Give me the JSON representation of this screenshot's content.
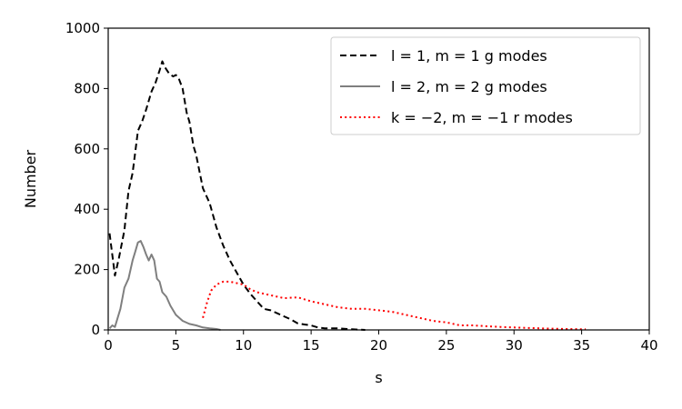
{
  "chart_data": {
    "type": "line",
    "xlabel": "s",
    "ylabel": "Number",
    "xlim": [
      0,
      40
    ],
    "ylim": [
      0,
      1000
    ],
    "xticks": [
      0,
      5,
      10,
      15,
      20,
      25,
      30,
      35,
      40
    ],
    "yticks": [
      0,
      200,
      400,
      600,
      800,
      1000
    ],
    "grid": false,
    "legend_position": "top-right",
    "series": [
      {
        "name": "l = 1, m = 1 g modes",
        "color": "#000000",
        "style": "dashed",
        "x": [
          0.1,
          0.5,
          0.8,
          1.2,
          1.5,
          1.8,
          2.2,
          2.5,
          2.8,
          3.2,
          3.5,
          3.8,
          4.0,
          4.2,
          4.5,
          4.8,
          5.0,
          5.2,
          5.5,
          5.8,
          6.0,
          6.3,
          6.5,
          7.0,
          7.5,
          8.0,
          8.5,
          9.0,
          9.5,
          10.0,
          10.5,
          11.0,
          11.5,
          12.0,
          12.5,
          13.0,
          13.5,
          14.0,
          14.5,
          15.0,
          15.5,
          16.0,
          17.0,
          18.0,
          19.0
        ],
        "y": [
          320,
          180,
          240,
          330,
          460,
          520,
          660,
          690,
          730,
          790,
          820,
          860,
          890,
          870,
          850,
          840,
          845,
          835,
          800,
          720,
          690,
          610,
          580,
          470,
          420,
          340,
          280,
          230,
          190,
          150,
          120,
          95,
          70,
          65,
          55,
          45,
          35,
          22,
          18,
          15,
          8,
          5,
          5,
          2,
          0
        ]
      },
      {
        "name": "l = 2, m = 2 g modes",
        "color": "#7f7f7f",
        "style": "solid",
        "x": [
          0.1,
          0.3,
          0.5,
          0.7,
          0.9,
          1.2,
          1.5,
          1.8,
          2.0,
          2.2,
          2.4,
          2.6,
          2.8,
          3.0,
          3.2,
          3.4,
          3.6,
          3.8,
          4.0,
          4.3,
          4.6,
          5.0,
          5.5,
          6.0,
          6.5,
          7.0,
          7.5,
          8.0,
          8.3
        ],
        "y": [
          5,
          15,
          10,
          40,
          70,
          140,
          170,
          230,
          260,
          290,
          295,
          275,
          250,
          230,
          250,
          230,
          170,
          160,
          125,
          110,
          80,
          50,
          30,
          20,
          15,
          8,
          5,
          3,
          0
        ]
      },
      {
        "name": "k = −2, m = −1 r modes",
        "color": "#ff0000",
        "style": "dotted",
        "x": [
          7.0,
          7.3,
          7.6,
          8.0,
          8.5,
          9.0,
          9.5,
          10.0,
          10.5,
          11.0,
          12.0,
          13.0,
          14.0,
          15.0,
          16.0,
          17.0,
          18.0,
          19.0,
          20.0,
          21.0,
          22.0,
          23.0,
          24.0,
          25.0,
          26.0,
          27.0,
          28.0,
          29.0,
          30.0,
          32.0,
          34.0,
          35.3
        ],
        "y": [
          40,
          90,
          130,
          150,
          160,
          160,
          155,
          150,
          135,
          125,
          115,
          105,
          108,
          95,
          85,
          75,
          70,
          70,
          65,
          60,
          50,
          40,
          30,
          25,
          15,
          15,
          12,
          10,
          8,
          5,
          3,
          2
        ]
      }
    ]
  }
}
